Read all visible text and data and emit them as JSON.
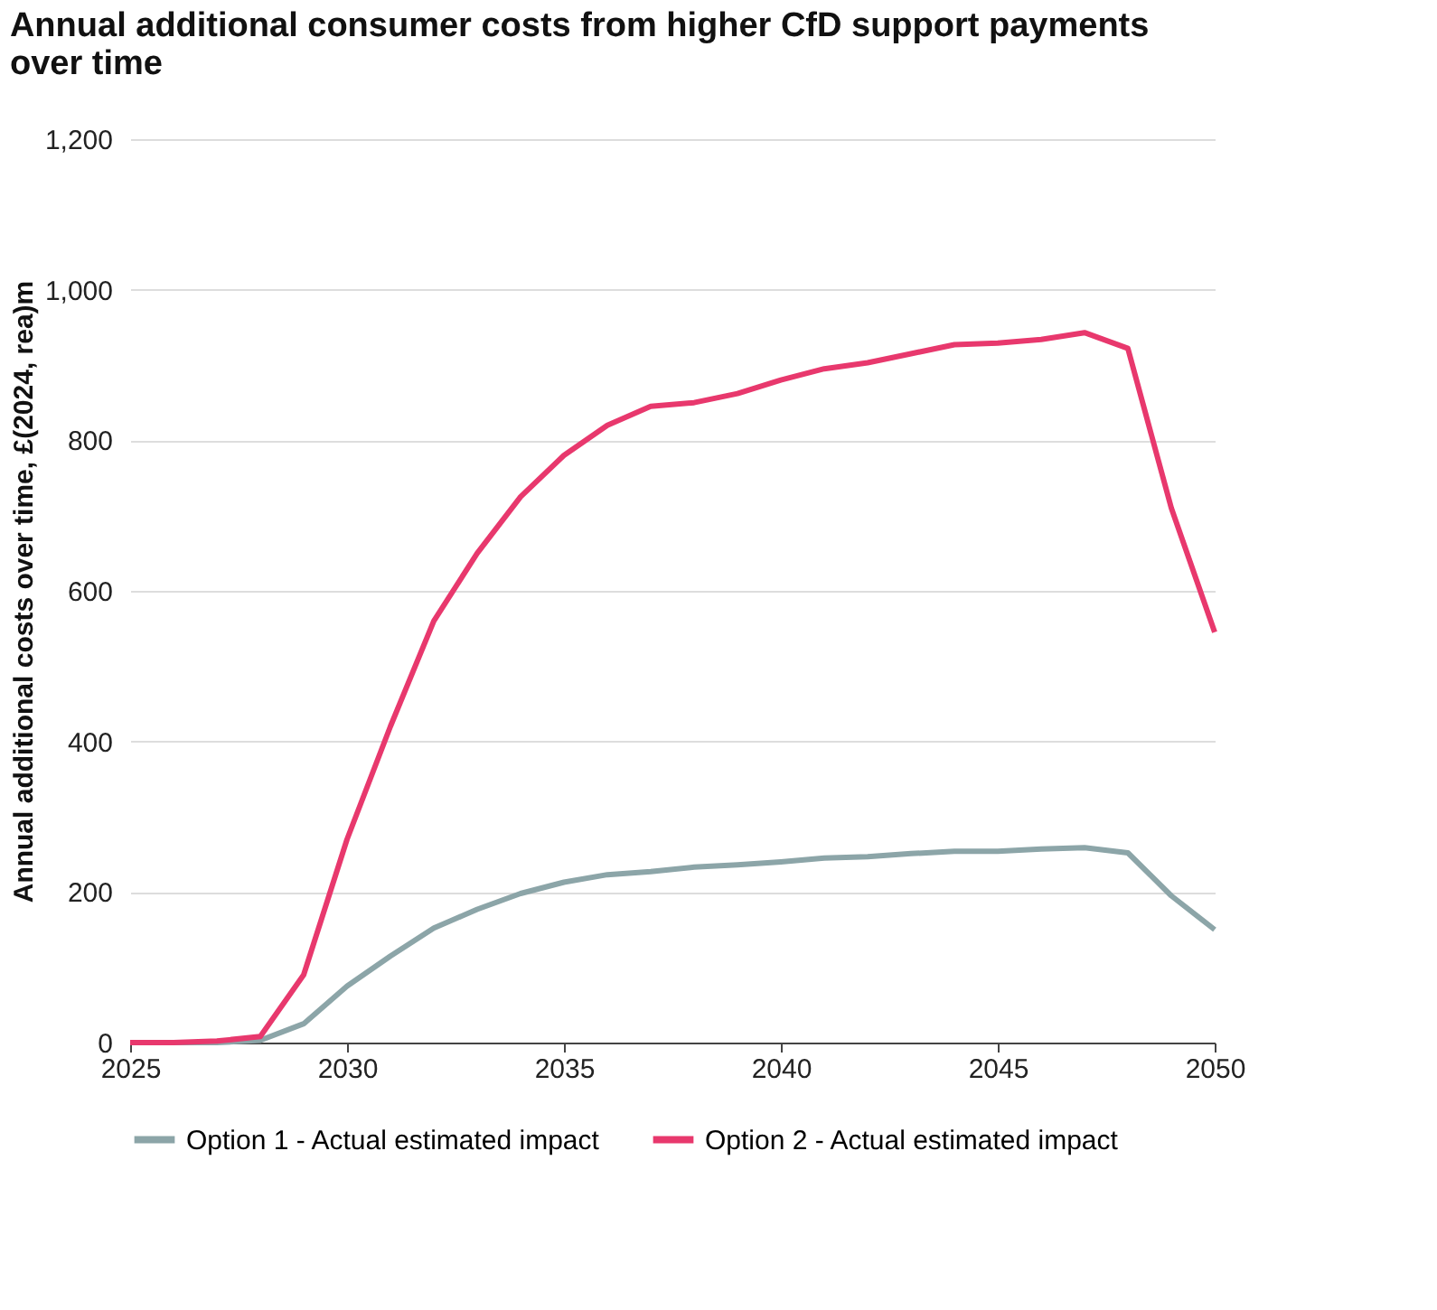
{
  "chart_data": {
    "type": "line",
    "title": "Annual additional consumer costs from higher CfD support payments over time",
    "ylabel": "Annual additional costs over time, £(2024, rea)m",
    "x": [
      2025,
      2026,
      2027,
      2028,
      2029,
      2030,
      2031,
      2032,
      2033,
      2034,
      2035,
      2036,
      2037,
      2038,
      2039,
      2040,
      2041,
      2042,
      2043,
      2044,
      2045,
      2046,
      2047,
      2048,
      2049,
      2050
    ],
    "series": [
      {
        "name": "Option 1 - Actual estimated impact",
        "color": "#8ca5a8",
        "values": [
          0,
          0,
          0,
          3,
          25,
          75,
          115,
          152,
          177,
          198,
          213,
          223,
          227,
          233,
          236,
          240,
          245,
          247,
          251,
          254,
          254,
          257,
          259,
          252,
          195,
          150
        ]
      },
      {
        "name": "Option 2 - Actual estimated impact",
        "color": "#e8386d",
        "values": [
          0,
          0,
          2,
          8,
          90,
          270,
          420,
          560,
          650,
          725,
          780,
          820,
          845,
          850,
          862,
          880,
          895,
          903,
          915,
          927,
          929,
          934,
          943,
          922,
          710,
          545
        ]
      }
    ],
    "xlim": [
      2025,
      2050
    ],
    "xticks": [
      2025,
      2030,
      2035,
      2040,
      2045,
      2050
    ],
    "ylim": [
      0,
      1200
    ],
    "yticks": [
      0,
      200,
      400,
      600,
      800,
      {
        "value": 1000,
        "label": "1,000"
      },
      {
        "value": 1200,
        "label": "1,200"
      }
    ],
    "grid": "y",
    "legend": "bottom",
    "marker": "none",
    "line_style": "solid"
  }
}
